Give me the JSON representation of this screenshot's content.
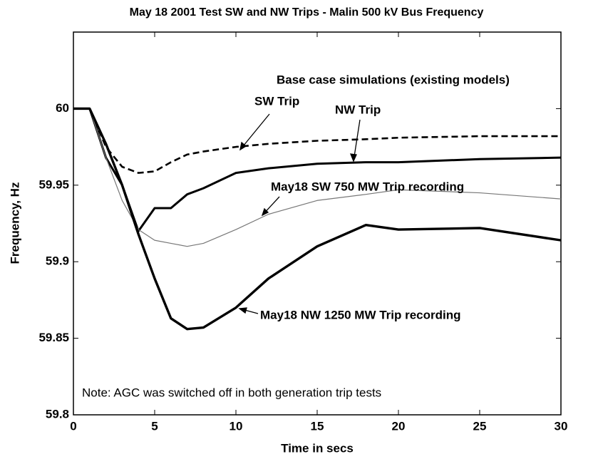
{
  "chart_data": {
    "type": "line",
    "title": "May 18 2001 Test SW and NW Trips - Malin 500 kV Bus Frequency",
    "x_label": "Time in secs",
    "y_label": "Frequency, Hz",
    "x": [
      0,
      1,
      2,
      3,
      4,
      5,
      6,
      7,
      8,
      10,
      12,
      15,
      18,
      20,
      25,
      30
    ],
    "series": [
      {
        "name": "SW Trip",
        "color": "#000000",
        "dashed": true,
        "values": [
          60,
          60,
          59.975,
          59.962,
          59.958,
          59.959,
          59.965,
          59.97,
          59.972,
          59.975,
          59.977,
          59.979,
          59.98,
          59.981,
          59.982,
          59.982
        ]
      },
      {
        "name": "NW Trip",
        "color": "#000000",
        "dashed": false,
        "values": [
          60,
          60,
          59.968,
          59.95,
          59.92,
          59.935,
          59.935,
          59.944,
          59.948,
          59.958,
          59.961,
          59.964,
          59.965,
          59.965,
          59.967,
          59.968
        ]
      },
      {
        "name": "May18 SW 750 MW Trip recording",
        "color": "#777777",
        "dashed": false,
        "values": [
          60,
          60,
          59.968,
          59.94,
          59.921,
          59.914,
          59.912,
          59.91,
          59.912,
          59.921,
          59.931,
          59.94,
          59.944,
          59.947,
          59.945,
          59.941
        ]
      },
      {
        "name": "May18 NW 1250 MW Trip recording",
        "color": "#000000",
        "dashed": false,
        "values": [
          60,
          60,
          59.977,
          59.95,
          59.918,
          59.889,
          59.863,
          59.856,
          59.857,
          59.87,
          59.889,
          59.91,
          59.924,
          59.921,
          59.922,
          59.914
        ]
      }
    ],
    "annotations": [
      "Base case simulations (existing models)",
      "Note: AGC was switched off in both generation trip tests"
    ],
    "xlim": [
      0,
      30
    ],
    "xticks": [
      0,
      5,
      10,
      15,
      20,
      25,
      30
    ],
    "ylim": [
      59.8,
      60.05
    ],
    "yticks": [
      59.8,
      59.85,
      59.9,
      59.95,
      60
    ],
    "grid": false
  }
}
